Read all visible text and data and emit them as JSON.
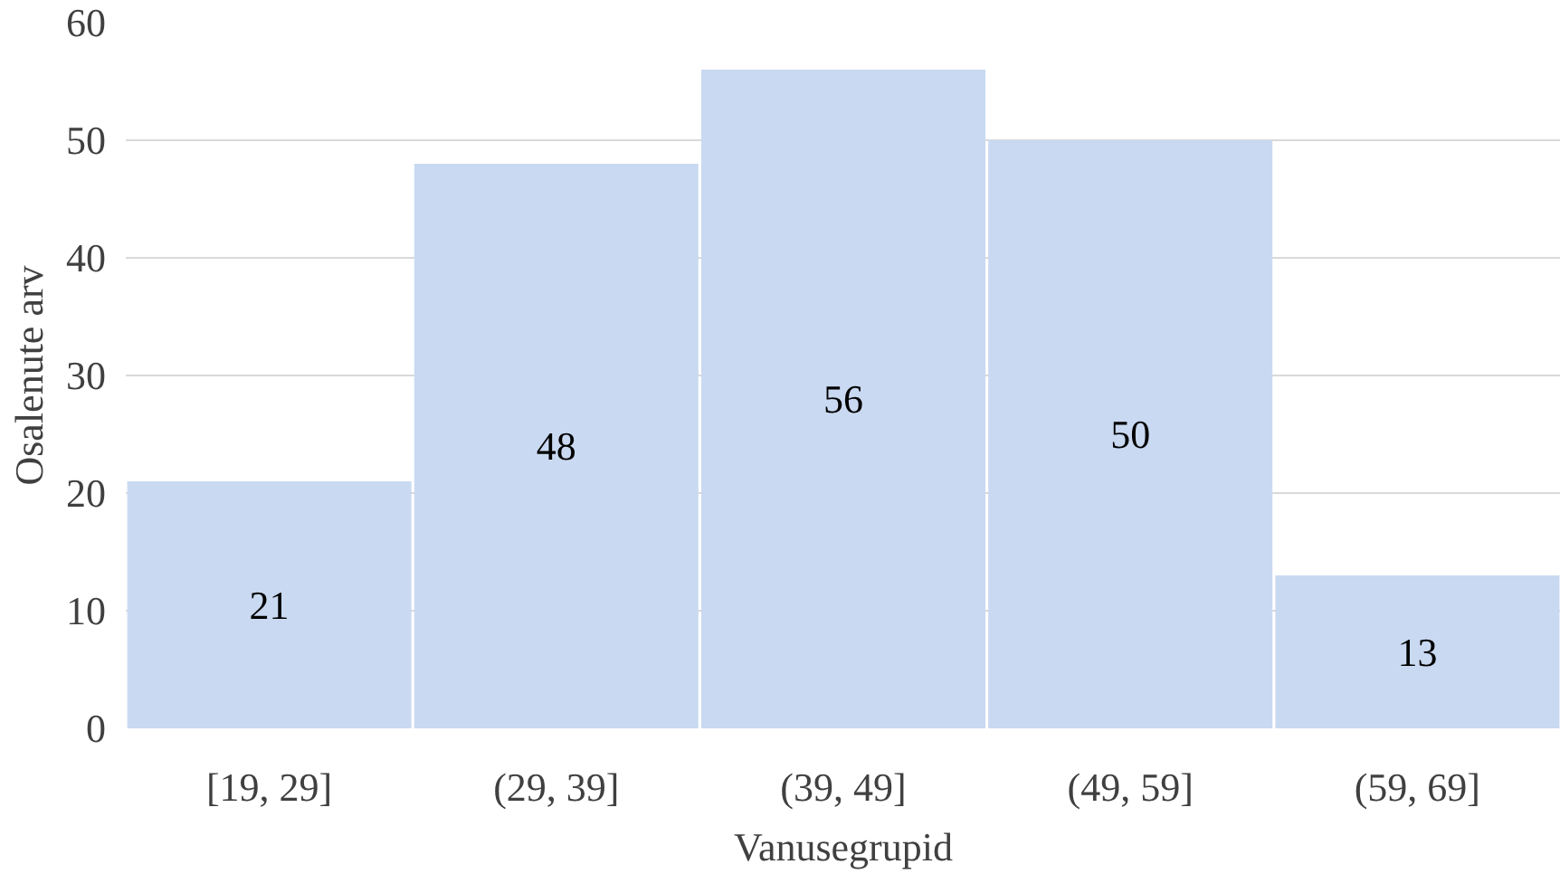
{
  "chart_data": {
    "type": "bar",
    "xlabel": "Vanusegrupid",
    "ylabel": "Osalenute arv",
    "categories": [
      "[19, 29]",
      "(29, 39]",
      "(39, 49]",
      "(49, 59]",
      "(59, 69]"
    ],
    "values": [
      21,
      48,
      56,
      50,
      13
    ],
    "color": "#c9d9f1",
    "ylim": [
      0,
      60
    ],
    "yticks": [
      0,
      10,
      20,
      30,
      40,
      50,
      60
    ],
    "grid": "y",
    "data_labels": true
  }
}
